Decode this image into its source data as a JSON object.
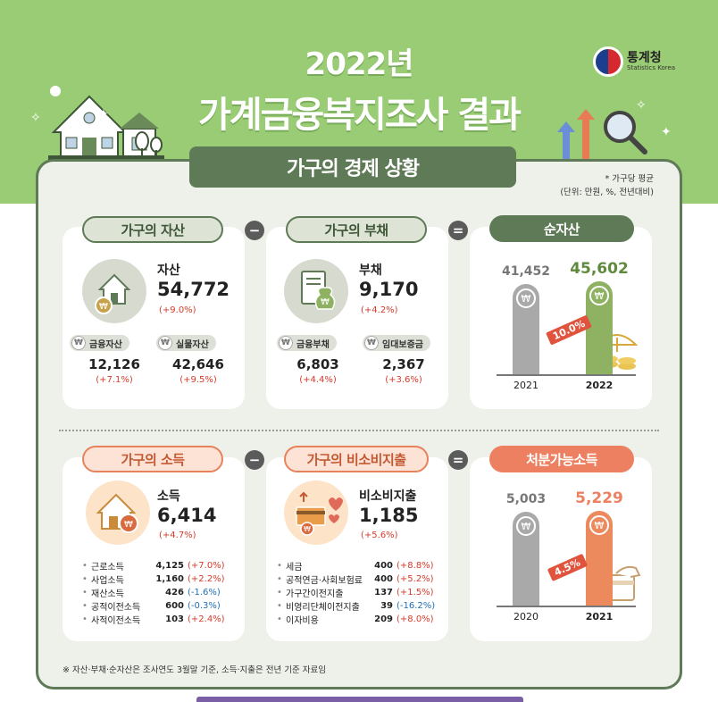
{
  "header": {
    "title_line1": "2022년",
    "title_line2": "가계금융복지조사 결과",
    "logo_ko": "통계청",
    "logo_en": "Statistics Korea"
  },
  "section_title": "가구의 경제 상황",
  "unit_note": {
    "line1": "* 가구당 평균",
    "line2": "(단위: 만원, %, 전년대비)"
  },
  "assets": {
    "pill": "가구의 자산",
    "label": "자산",
    "value": "54,772",
    "change": "(+9.0%)",
    "sub": [
      {
        "label": "금융자산",
        "value": "12,126",
        "change": "(+7.1%)"
      },
      {
        "label": "실물자산",
        "value": "42,646",
        "change": "(+9.5%)"
      }
    ]
  },
  "debt": {
    "pill": "가구의 부채",
    "label": "부채",
    "value": "9,170",
    "change": "(+4.2%)",
    "sub": [
      {
        "label": "금융부채",
        "value": "6,803",
        "change": "(+4.4%)"
      },
      {
        "label": "임대보증금",
        "value": "2,367",
        "change": "(+3.6%)"
      }
    ]
  },
  "net_assets": {
    "pill": "순자산",
    "growth": "10.0%",
    "bars": [
      {
        "year": "2021",
        "value": 41452,
        "label": "41,452"
      },
      {
        "year": "2022",
        "value": 45602,
        "label": "45,602"
      }
    ]
  },
  "income": {
    "pill": "가구의 소득",
    "label": "소득",
    "value": "6,414",
    "change": "(+4.7%)",
    "items": [
      {
        "name": "근로소득",
        "value": "4,125",
        "change": "(+7.0%)",
        "color": "#d63a2a"
      },
      {
        "name": "사업소득",
        "value": "1,160",
        "change": "(+2.2%)",
        "color": "#d63a2a"
      },
      {
        "name": "재산소득",
        "value": "426",
        "change": "(-1.6%)",
        "color": "#1e6fb5"
      },
      {
        "name": "공적이전소득",
        "value": "600",
        "change": "(-0.3%)",
        "color": "#1e6fb5"
      },
      {
        "name": "사적이전소득",
        "value": "103",
        "change": "(+2.4%)",
        "color": "#d63a2a"
      }
    ]
  },
  "non_consumption": {
    "pill": "가구의 비소비지출",
    "label": "비소비지출",
    "value": "1,185",
    "change": "(+5.6%)",
    "items": [
      {
        "name": "세금",
        "value": "400",
        "change": "(+8.8%)",
        "color": "#d63a2a"
      },
      {
        "name": "공적연금·사회보험료",
        "value": "400",
        "change": "(+5.2%)",
        "color": "#d63a2a"
      },
      {
        "name": "가구간이전지출",
        "value": "137",
        "change": "(+1.5%)",
        "color": "#d63a2a"
      },
      {
        "name": "비영리단체이전지출",
        "value": "39",
        "change": "(-16.2%)",
        "color": "#1e6fb5"
      },
      {
        "name": "이자비용",
        "value": "209",
        "change": "(+8.0%)",
        "color": "#d63a2a"
      }
    ]
  },
  "disposable": {
    "pill": "처분가능소득",
    "growth": "4.5%",
    "bars": [
      {
        "year": "2020",
        "value": 5003,
        "label": "5,003"
      },
      {
        "year": "2021",
        "value": 5229,
        "label": "5,229"
      }
    ]
  },
  "operators": {
    "minus": "−",
    "equals": "="
  },
  "footnote": "※ 자산·부채·순자산은 조사연도 3월말 기준, 소득·지출은 전년 기준 자료임",
  "icons": [
    "statistics-korea-logo",
    "house-icon",
    "document-money-bag-icon",
    "home-coin-icon",
    "card-heart-icon",
    "won-coin-icon"
  ]
}
